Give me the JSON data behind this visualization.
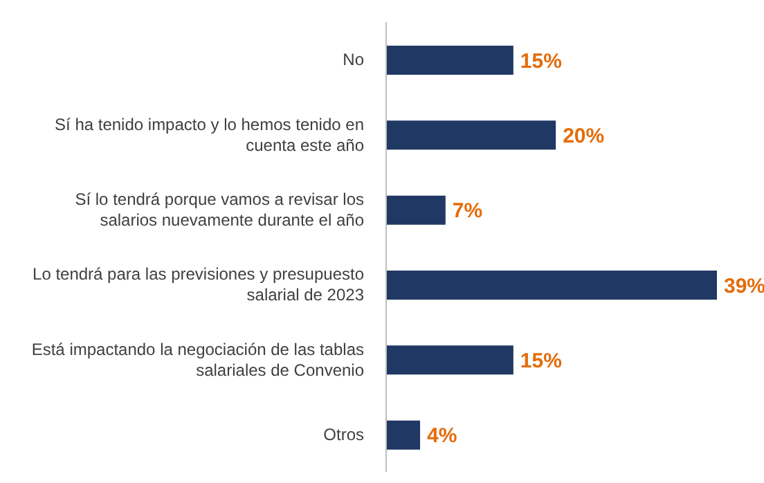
{
  "chart_data": {
    "type": "bar",
    "orientation": "horizontal",
    "categories": [
      "No",
      "Sí ha tenido impacto y lo hemos tenido en cuenta este año",
      "Sí lo tendrá porque vamos a revisar los salarios nuevamente durante el año",
      "Lo tendrá para las previsiones y presupuesto salarial de 2023",
      "Está impactando la negociación de las tablas salariales de Convenio",
      "Otros"
    ],
    "values": [
      15,
      20,
      7,
      39,
      15,
      4
    ],
    "value_labels": [
      "15%",
      "20%",
      "7%",
      "39%",
      "15%",
      "4%"
    ],
    "color": "#203864"
  }
}
